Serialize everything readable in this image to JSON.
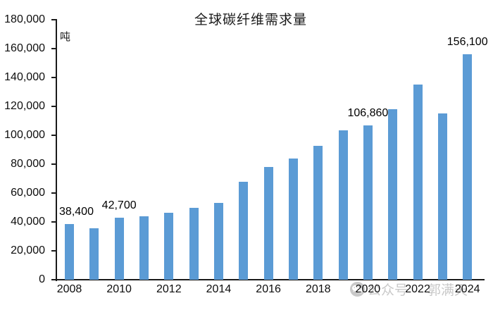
{
  "chart_data": {
    "type": "bar",
    "title": "全球碳纤维需求量",
    "unit_label": "吨",
    "categories": [
      "2008",
      "2009",
      "2010",
      "2011",
      "2012",
      "2013",
      "2014",
      "2015",
      "2016",
      "2017",
      "2018",
      "2019",
      "2020",
      "2021",
      "2022",
      "2023",
      "2024"
    ],
    "values": [
      38400,
      35500,
      42700,
      44000,
      46200,
      50000,
      53300,
      68000,
      78000,
      84000,
      92500,
      103500,
      106860,
      118000,
      135000,
      115000,
      156100
    ],
    "bar_labels": {
      "0": "38,400",
      "2": "42,700",
      "12": "106,860",
      "16": "156,100"
    },
    "x_tick_labels": [
      "2008",
      "2010",
      "2012",
      "2014",
      "2016",
      "2018",
      "2020",
      "2022",
      "2024"
    ],
    "y_tick_labels": [
      "0",
      "20,000",
      "40,000",
      "60,000",
      "80,000",
      "100,000",
      "120,000",
      "140,000",
      "160,000",
      "180,000"
    ],
    "ylim": [
      0,
      180000
    ],
    "y_tick_step": 20000,
    "grid": false,
    "legend": "none",
    "bar_color": "#5B9BD5",
    "axis_color": "#1a1a1a",
    "label_color": "#000000"
  },
  "watermark": {
    "icon": "wechat-icon",
    "text_platform": "公众号",
    "text_name": "郭满天",
    "color": "#c9c9c9"
  }
}
